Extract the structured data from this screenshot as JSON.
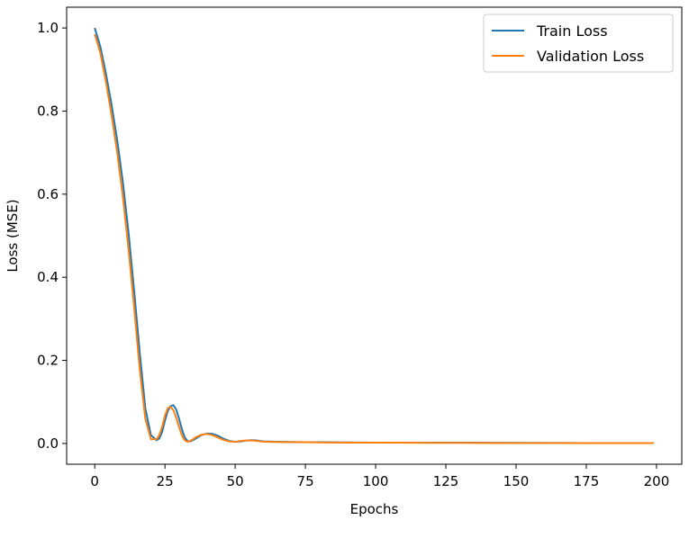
{
  "chart_data": {
    "type": "line",
    "title": "",
    "xlabel": "Epochs",
    "ylabel": "Loss (MSE)",
    "xlim": [
      -10,
      209
    ],
    "ylim": [
      -0.05,
      1.05
    ],
    "xticks": [
      0,
      25,
      50,
      75,
      100,
      125,
      150,
      175,
      200
    ],
    "yticks": [
      0.0,
      0.2,
      0.4,
      0.6,
      0.8,
      1.0
    ],
    "xtick_labels": [
      "0",
      "25",
      "50",
      "75",
      "100",
      "125",
      "150",
      "175",
      "200"
    ],
    "ytick_labels": [
      "0.0",
      "0.2",
      "0.4",
      "0.6",
      "0.8",
      "1.0"
    ],
    "grid": false,
    "legend_position": "top-right",
    "series": [
      {
        "name": "Train Loss",
        "color": "#1f77b4",
        "x": [
          0,
          2,
          4,
          6,
          8,
          10,
          12,
          14,
          16,
          18,
          20,
          22,
          23,
          24,
          25,
          26,
          27,
          28,
          29,
          30,
          31,
          32,
          33,
          34,
          35,
          36,
          38,
          40,
          42,
          44,
          46,
          48,
          50,
          52,
          54,
          56,
          58,
          60,
          65,
          70,
          75,
          80,
          90,
          100,
          125,
          150,
          175,
          199
        ],
        "y": [
          1.0,
          0.955,
          0.89,
          0.815,
          0.73,
          0.63,
          0.51,
          0.37,
          0.22,
          0.085,
          0.02,
          0.008,
          0.012,
          0.028,
          0.055,
          0.078,
          0.09,
          0.092,
          0.082,
          0.06,
          0.035,
          0.015,
          0.006,
          0.005,
          0.008,
          0.012,
          0.02,
          0.024,
          0.023,
          0.018,
          0.011,
          0.006,
          0.004,
          0.005,
          0.007,
          0.008,
          0.007,
          0.005,
          0.004,
          0.0035,
          0.003,
          0.003,
          0.0025,
          0.002,
          0.002,
          0.0015,
          0.001,
          0.001
        ]
      },
      {
        "name": "Validation Loss",
        "color": "#ff7f0e",
        "x": [
          0,
          2,
          4,
          6,
          8,
          10,
          12,
          14,
          16,
          18,
          20,
          22,
          23,
          24,
          25,
          26,
          27,
          28,
          29,
          30,
          31,
          32,
          33,
          34,
          35,
          36,
          38,
          40,
          42,
          44,
          46,
          48,
          50,
          52,
          54,
          56,
          58,
          60,
          65,
          70,
          75,
          80,
          90,
          100,
          125,
          150,
          175,
          199
        ],
        "y": [
          0.985,
          0.94,
          0.87,
          0.79,
          0.7,
          0.595,
          0.47,
          0.33,
          0.18,
          0.06,
          0.01,
          0.01,
          0.02,
          0.04,
          0.067,
          0.085,
          0.088,
          0.08,
          0.062,
          0.04,
          0.02,
          0.008,
          0.004,
          0.006,
          0.01,
          0.015,
          0.021,
          0.023,
          0.02,
          0.014,
          0.008,
          0.005,
          0.004,
          0.006,
          0.007,
          0.007,
          0.006,
          0.004,
          0.0035,
          0.003,
          0.003,
          0.0025,
          0.002,
          0.002,
          0.0015,
          0.001,
          0.001,
          0.001
        ]
      }
    ]
  }
}
